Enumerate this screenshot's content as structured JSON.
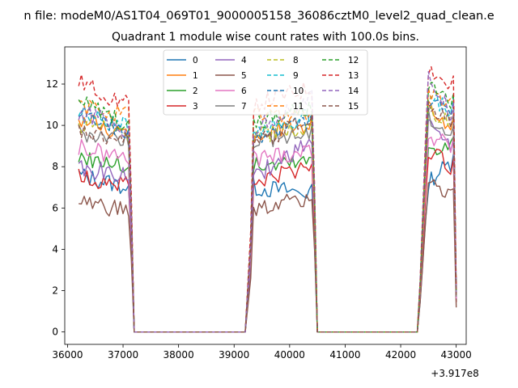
{
  "figure": {
    "suptitle": "n file: modeM0/AS1T04_069T01_9000005158_36086cztM0_level2_quad_clean.e"
  },
  "chart_data": {
    "type": "line",
    "title": "Quadrant 1 module wise count rates with 100.0s bins.",
    "xlabel": "",
    "ylabel": "",
    "x_offset_label": "+3.917e8",
    "xlim": [
      35950,
      43180
    ],
    "ylim": [
      -0.6,
      13.8
    ],
    "x_ticks": [
      36000,
      37000,
      38000,
      39000,
      40000,
      41000,
      42000,
      43000
    ],
    "x_tick_labels": [
      "36000",
      "37000",
      "38000",
      "39000",
      "40000",
      "41000",
      "42000",
      "43000"
    ],
    "y_ticks": [
      0,
      2,
      4,
      6,
      8,
      10,
      12
    ],
    "y_tick_labels": [
      "0",
      "2",
      "4",
      "6",
      "8",
      "10",
      "12"
    ],
    "grid": false,
    "legend": {
      "placement": "top-center",
      "columns": 4
    },
    "segments": [
      {
        "x_start": 36200,
        "x_end": 37100
      },
      {
        "x_start": 39300,
        "x_end": 40400
      },
      {
        "x_start": 42400,
        "x_end": 42900
      }
    ],
    "gaps": [
      {
        "x_start": 37200,
        "x_end": 39200
      },
      {
        "x_start": 40500,
        "x_end": 42300
      }
    ],
    "series": [
      {
        "name": "0",
        "color": "#1f77b4",
        "dash": "solid",
        "levels": [
          7.6,
          7.0,
          7.3,
          8.2
        ]
      },
      {
        "name": "1",
        "color": "#ff7f0e",
        "dash": "solid",
        "levels": [
          10.3,
          9.5,
          11.0,
          9.9
        ]
      },
      {
        "name": "2",
        "color": "#2ca02c",
        "dash": "solid",
        "levels": [
          8.5,
          8.0,
          9.0,
          9.0
        ]
      },
      {
        "name": "3",
        "color": "#d62728",
        "dash": "solid",
        "levels": [
          7.5,
          7.2,
          8.8,
          8.0
        ]
      },
      {
        "name": "4",
        "color": "#9467bd",
        "dash": "solid",
        "levels": [
          8.0,
          7.5,
          10.0,
          8.8
        ]
      },
      {
        "name": "5",
        "color": "#8c564b",
        "dash": "solid",
        "levels": [
          6.3,
          5.8,
          7.2,
          6.6
        ]
      },
      {
        "name": "6",
        "color": "#e377c2",
        "dash": "solid",
        "levels": [
          8.9,
          8.4,
          9.6,
          9.0
        ]
      },
      {
        "name": "7",
        "color": "#7f7f7f",
        "dash": "solid",
        "levels": [
          9.7,
          9.3,
          10.4,
          9.5
        ]
      },
      {
        "name": "8",
        "color": "#bcbd22",
        "dash": "dashed",
        "levels": [
          10.0,
          9.6,
          10.6,
          10.2
        ]
      },
      {
        "name": "9",
        "color": "#17becf",
        "dash": "dashed",
        "levels": [
          10.6,
          9.9,
          11.3,
          10.8
        ]
      },
      {
        "name": "10",
        "color": "#1f77b4",
        "dash": "dashed",
        "levels": [
          10.8,
          9.4,
          11.2,
          10.4
        ]
      },
      {
        "name": "11",
        "color": "#ff7f0e",
        "dash": "dashed",
        "levels": [
          10.9,
          10.5,
          11.6,
          10.9
        ]
      },
      {
        "name": "12",
        "color": "#2ca02c",
        "dash": "dashed",
        "levels": [
          11.2,
          10.0,
          11.8,
          11.0
        ]
      },
      {
        "name": "13",
        "color": "#d62728",
        "dash": "dashed",
        "levels": [
          12.1,
          11.0,
          12.8,
          11.8
        ]
      },
      {
        "name": "14",
        "color": "#9467bd",
        "dash": "dashed",
        "levels": [
          10.7,
          9.8,
          12.3,
          10.6
        ]
      },
      {
        "name": "15",
        "color": "#8c564b",
        "dash": "dashed",
        "levels": [
          9.8,
          9.2,
          11.1,
          10.0
        ]
      }
    ]
  }
}
